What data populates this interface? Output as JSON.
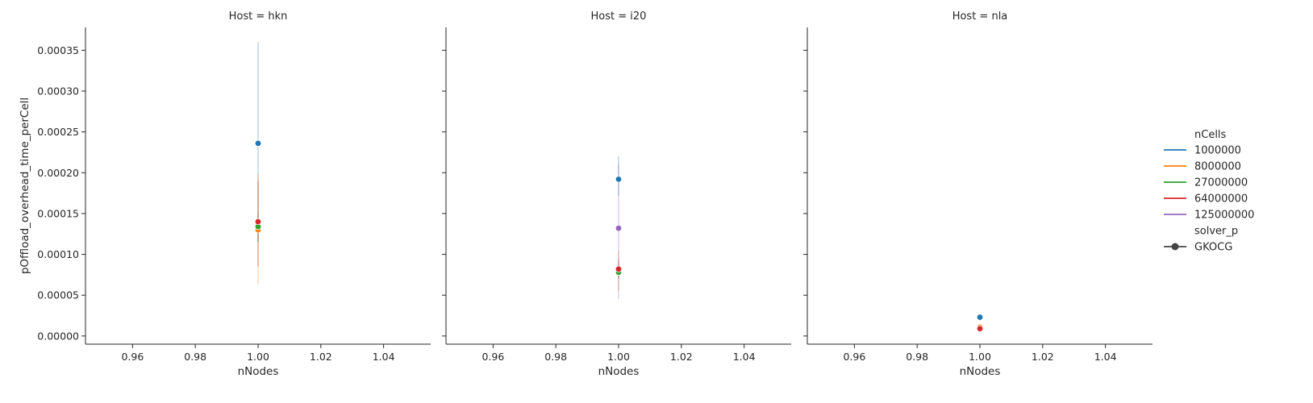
{
  "chart_data": {
    "type": "line",
    "facet_label": "Host",
    "facet_separator": " = ",
    "xlabel": "nNodes",
    "ylabel": "pOffload_overhead_time_perCell",
    "xlim": [
      0.945,
      1.055
    ],
    "ylim": [
      -1e-05,
      0.000378
    ],
    "xticks": [
      0.96,
      0.98,
      1.0,
      1.02,
      1.04
    ],
    "xtick_labels": [
      "0.96",
      "0.98",
      "1.00",
      "1.02",
      "1.04"
    ],
    "yticks": [
      0.0,
      5e-05,
      0.0001,
      0.00015,
      0.0002,
      0.00025,
      0.0003,
      0.00035
    ],
    "ytick_labels": [
      "0.00000",
      "0.00005",
      "0.00010",
      "0.00015",
      "0.00020",
      "0.00025",
      "0.00030",
      "0.00035"
    ],
    "grid": false,
    "legend": {
      "placement": "right",
      "hue_title": "nCells",
      "hue_entries": [
        {
          "label": "1000000",
          "color": "#1f77b4"
        },
        {
          "label": "8000000",
          "color": "#ff7f0e"
        },
        {
          "label": "27000000",
          "color": "#2ca02c"
        },
        {
          "label": "64000000",
          "color": "#d62728"
        },
        {
          "label": "125000000",
          "color": "#9467bd"
        }
      ],
      "style_title": "solver_p",
      "style_entries": [
        {
          "label": "GKOCG",
          "color": "#444444"
        }
      ]
    },
    "panels": [
      {
        "host": "hkn",
        "series": [
          {
            "name": "1000000",
            "x": 1.0,
            "y": 0.000236,
            "ci": [
              0.000115,
              0.00036
            ]
          },
          {
            "name": "8000000",
            "x": 1.0,
            "y": 0.00013,
            "ci": [
              6.3e-05,
              0.000198
            ]
          },
          {
            "name": "27000000",
            "x": 1.0,
            "y": 0.000134,
            "ci": [
              0.000115,
              0.000152
            ]
          },
          {
            "name": "64000000",
            "x": 1.0,
            "y": 0.00014,
            "ci": [
              8.5e-05,
              0.00019
            ]
          }
        ]
      },
      {
        "host": "i20",
        "series": [
          {
            "name": "1000000",
            "x": 1.0,
            "y": 0.000192,
            "ci": [
              0.000172,
              0.00022
            ]
          },
          {
            "name": "8000000",
            "x": 1.0,
            "y": 8e-05,
            "ci": [
              5.5e-05,
              0.000105
            ]
          },
          {
            "name": "27000000",
            "x": 1.0,
            "y": 7.8e-05,
            "ci": [
              7e-05,
              8.8e-05
            ]
          },
          {
            "name": "64000000",
            "x": 1.0,
            "y": 8.2e-05,
            "ci": [
              7e-05,
              9.4e-05
            ]
          },
          {
            "name": "125000000",
            "x": 1.0,
            "y": 0.000132,
            "ci": [
              4.5e-05,
              0.00021
            ]
          }
        ]
      },
      {
        "host": "nla",
        "series": [
          {
            "name": "1000000",
            "x": 1.0,
            "y": 2.3e-05,
            "ci": [
              2.2e-05,
              2.4e-05
            ]
          },
          {
            "name": "8000000",
            "x": 1.0,
            "y": 1.1e-05,
            "ci": [
              1e-05,
              1.2e-05
            ]
          },
          {
            "name": "64000000",
            "x": 1.0,
            "y": 9e-06,
            "ci": [
              8e-06,
              1e-05
            ]
          }
        ]
      }
    ]
  }
}
